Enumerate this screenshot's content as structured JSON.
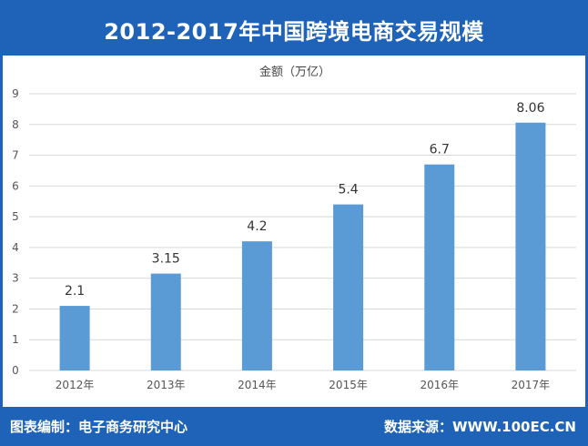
{
  "header": {
    "title": "2012-2017年中国跨境电商交易规模"
  },
  "footer": {
    "left": "图表编制：电子商务研究中心",
    "right": "数据来源：WWW.100EC.CN"
  },
  "colors": {
    "frame": "#1f63b8",
    "bar": "#5b9bd5",
    "grid": "#d9d9d9"
  },
  "chart_data": {
    "type": "bar",
    "title": "",
    "ylabel": "金额（万亿）",
    "xlabel": "",
    "categories": [
      "2012年",
      "2013年",
      "2014年",
      "2015年",
      "2016年",
      "2017年"
    ],
    "values": [
      2.1,
      3.15,
      4.2,
      5.4,
      6.7,
      8.06
    ],
    "data_labels": [
      "2.1",
      "3.15",
      "4.2",
      "5.4",
      "6.7",
      "8.06"
    ],
    "yticks": [
      "0",
      "1",
      "2",
      "3",
      "4",
      "5",
      "6",
      "7",
      "8",
      "9"
    ],
    "ylim": [
      0,
      9
    ],
    "grid": true
  }
}
